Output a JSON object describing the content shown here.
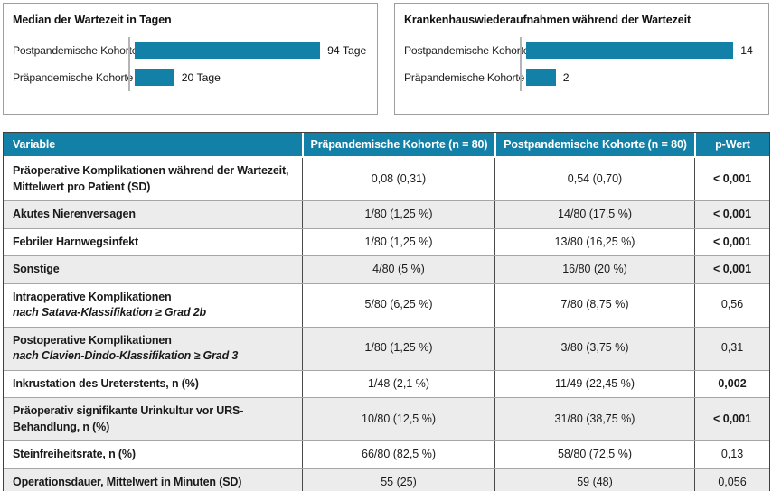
{
  "colors": {
    "accent": "#1380A8",
    "row_shade": "#ECECEC",
    "header_text": "#FFFFFF"
  },
  "chart_data": [
    {
      "type": "bar",
      "orientation": "horizontal",
      "title": "Median der Wartezeit in Tagen",
      "categories": [
        "Postpandemische Kohorte",
        "Präpandemische Kohorte"
      ],
      "values": [
        94,
        20
      ],
      "value_labels": [
        "94 Tage",
        "20 Tage"
      ],
      "xlim": [
        0,
        120
      ],
      "grid": false,
      "legend": false,
      "bar_color": "#1380A8"
    },
    {
      "type": "bar",
      "orientation": "horizontal",
      "title": "Krankenhauswiederaufnahmen während der Wartezeit",
      "categories": [
        "Postpandemische Kohorte",
        "Präpandemische Kohorte"
      ],
      "values": [
        14,
        2
      ],
      "value_labels": [
        "14",
        "2"
      ],
      "xlim": [
        0,
        16
      ],
      "grid": false,
      "legend": false,
      "bar_color": "#1380A8"
    },
    {
      "type": "table",
      "headers": [
        "Variable",
        "Präpandemische Kohorte (n = 80)",
        "Postpandemische Kohorte (n = 80)",
        "p-Wert"
      ],
      "rows": [
        {
          "variable": "Präoperative Komplikationen während der Wartezeit, Mittelwert pro Patient (SD)",
          "variable_sub": "",
          "pre_cohort": "0,08 (0,31)",
          "post_cohort": "0,54 (0,70)",
          "p_value": "< 0,001",
          "p_strong": true
        },
        {
          "variable": "Akutes Nierenversagen",
          "variable_sub": "",
          "pre_cohort": "1/80 (1,25 %)",
          "post_cohort": "14/80 (17,5 %)",
          "p_value": "< 0,001",
          "p_strong": true
        },
        {
          "variable": "Febriler Harnwegsinfekt",
          "variable_sub": "",
          "pre_cohort": "1/80 (1,25 %)",
          "post_cohort": "13/80 (16,25 %)",
          "p_value": "< 0,001",
          "p_strong": true
        },
        {
          "variable": "Sonstige",
          "variable_sub": "",
          "pre_cohort": "4/80 (5 %)",
          "post_cohort": "16/80 (20 %)",
          "p_value": "< 0,001",
          "p_strong": true
        },
        {
          "variable": "Intraoperative Komplikationen",
          "variable_sub": "nach Satava-Klassifikation ≥ Grad 2b",
          "pre_cohort": "5/80 (6,25 %)",
          "post_cohort": "7/80 (8,75 %)",
          "p_value": "0,56",
          "p_strong": false
        },
        {
          "variable": "Postoperative Komplikationen",
          "variable_sub": "nach Clavien-Dindo-Klassifikation ≥ Grad 3",
          "pre_cohort": "1/80 (1,25 %)",
          "post_cohort": "3/80 (3,75 %)",
          "p_value": "0,31",
          "p_strong": false
        },
        {
          "variable": "Inkrustation des Ureterstents, n (%)",
          "variable_sub": "",
          "pre_cohort": "1/48 (2,1 %)",
          "post_cohort": "11/49 (22,45 %)",
          "p_value": "0,002",
          "p_strong": true
        },
        {
          "variable": "Präoperativ signifikante Urinkultur vor URS-Behandlung, n (%)",
          "variable_sub": "",
          "pre_cohort": "10/80 (12,5 %)",
          "post_cohort": "31/80 (38,75 %)",
          "p_value": "< 0,001",
          "p_strong": true
        },
        {
          "variable": "Steinfreiheitsrate, n (%)",
          "variable_sub": "",
          "pre_cohort": "66/80 (82,5 %)",
          "post_cohort": "58/80 (72,5 %)",
          "p_value": "0,13",
          "p_strong": false
        },
        {
          "variable": "Operationsdauer, Mittelwert in Minuten (SD)",
          "variable_sub": "",
          "pre_cohort": "55 (25)",
          "post_cohort": "59 (48)",
          "p_value": "0,056",
          "p_strong": false
        }
      ]
    }
  ]
}
